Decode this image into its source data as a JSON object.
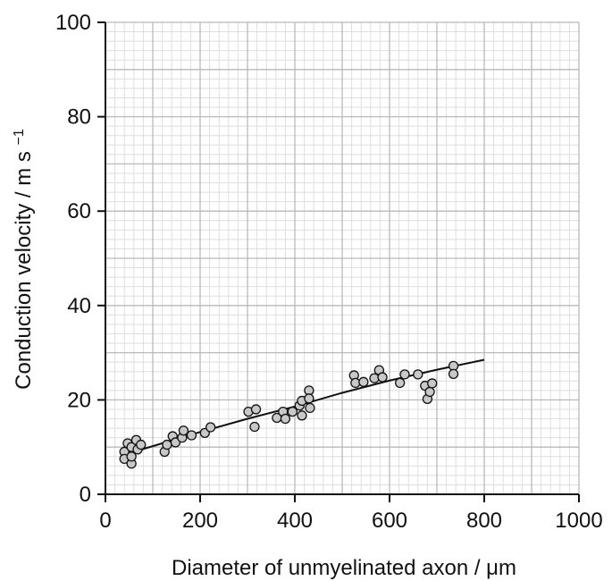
{
  "chart_data": {
    "type": "scatter",
    "xlabel": "Diameter of unmyelinated axon / μm",
    "ylabel": "Conduction velocity / m s",
    "ylabel_superscript": "−1",
    "xlim": [
      0,
      1000
    ],
    "ylim": [
      0,
      100
    ],
    "x_ticks": [
      0,
      200,
      400,
      600,
      800,
      1000
    ],
    "y_ticks": [
      0,
      20,
      40,
      60,
      80,
      100
    ],
    "x_tick_labels": [
      "0",
      "200",
      "400",
      "600",
      "800",
      "1000"
    ],
    "y_tick_labels": [
      "0",
      "20",
      "40",
      "60",
      "80",
      "100"
    ],
    "grid": true,
    "minor_grid": true,
    "marker_fill": "#c8c8c8",
    "marker_edge": "#111111",
    "grid_major_color": "#b9b9b9",
    "grid_minor_color": "#dedede",
    "series": [
      {
        "type": "scatter",
        "points": [
          [
            40,
            9.0
          ],
          [
            40,
            7.5
          ],
          [
            47,
            10.8
          ],
          [
            55,
            6.5
          ],
          [
            55,
            8.0
          ],
          [
            55,
            10.0
          ],
          [
            65,
            11.5
          ],
          [
            68,
            9.5
          ],
          [
            75,
            10.5
          ],
          [
            125,
            9.0
          ],
          [
            130,
            10.5
          ],
          [
            142,
            12.3
          ],
          [
            148,
            11.0
          ],
          [
            162,
            12.0
          ],
          [
            165,
            13.5
          ],
          [
            182,
            12.5
          ],
          [
            210,
            13.0
          ],
          [
            222,
            14.2
          ],
          [
            302,
            17.5
          ],
          [
            315,
            14.3
          ],
          [
            318,
            18.0
          ],
          [
            362,
            16.2
          ],
          [
            375,
            17.5
          ],
          [
            380,
            16.0
          ],
          [
            395,
            17.5
          ],
          [
            410,
            18.8
          ],
          [
            415,
            19.8
          ],
          [
            415,
            16.7
          ],
          [
            430,
            22.0
          ],
          [
            430,
            20.3
          ],
          [
            432,
            18.3
          ],
          [
            525,
            25.2
          ],
          [
            528,
            23.6
          ],
          [
            545,
            23.8
          ],
          [
            568,
            24.6
          ],
          [
            578,
            26.3
          ],
          [
            585,
            24.8
          ],
          [
            622,
            23.6
          ],
          [
            632,
            25.4
          ],
          [
            660,
            25.4
          ],
          [
            675,
            23.0
          ],
          [
            680,
            20.2
          ],
          [
            685,
            21.7
          ],
          [
            690,
            23.5
          ],
          [
            735,
            27.2
          ],
          [
            735,
            25.5
          ]
        ]
      },
      {
        "type": "line",
        "points": [
          [
            40,
            8.4
          ],
          [
            100,
            10.2
          ],
          [
            200,
            13.2
          ],
          [
            300,
            16.0
          ],
          [
            400,
            18.6
          ],
          [
            500,
            21.5
          ],
          [
            600,
            24.1
          ],
          [
            700,
            26.4
          ],
          [
            800,
            28.5
          ]
        ]
      }
    ]
  }
}
